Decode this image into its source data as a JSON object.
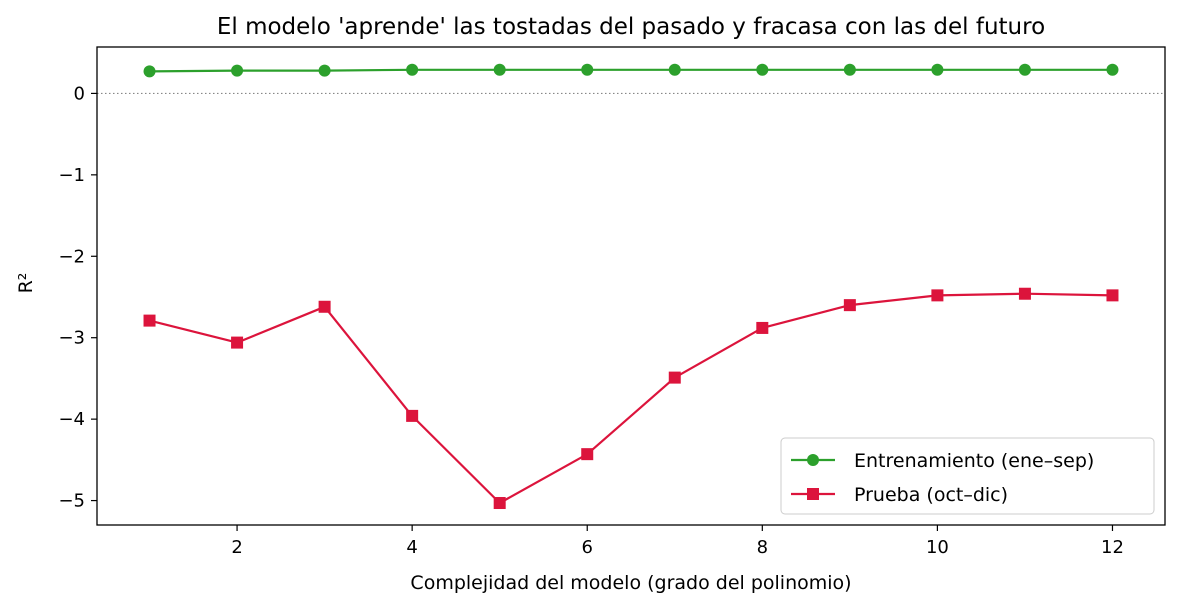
{
  "chart_data": {
    "type": "line",
    "title": "El modelo 'aprende' las tostadas del pasado y fracasa con las del futuro",
    "xlabel": "Complejidad del modelo (grado del polinomio)",
    "ylabel": "R²",
    "xlim": [
      0.4,
      12.6
    ],
    "ylim": [
      -5.3,
      0.57
    ],
    "xticks": [
      2,
      4,
      6,
      8,
      10,
      12
    ],
    "yticks": [
      0,
      -1,
      -2,
      -3,
      -4,
      -5
    ],
    "ytick_labels": [
      "0",
      "−1",
      "−2",
      "−3",
      "−4",
      "−5"
    ],
    "reference_line": {
      "y": 0,
      "style": "dotted",
      "color": "#888888"
    },
    "grid": false,
    "legend_position": "lower-right",
    "x": [
      1,
      2,
      3,
      4,
      5,
      6,
      7,
      8,
      9,
      10,
      11,
      12
    ],
    "series": [
      {
        "name": "Entrenamiento (ene–sep)",
        "color": "#2ca02c",
        "marker": "circle",
        "values": [
          0.27,
          0.28,
          0.28,
          0.29,
          0.29,
          0.29,
          0.29,
          0.29,
          0.29,
          0.29,
          0.29,
          0.29
        ]
      },
      {
        "name": "Prueba (oct–dic)",
        "color": "#dc143c",
        "marker": "square",
        "values": [
          -2.79,
          -3.06,
          -2.62,
          -3.96,
          -5.03,
          -4.43,
          -3.49,
          -2.88,
          -2.6,
          -2.48,
          -2.46,
          -2.48
        ]
      }
    ]
  }
}
